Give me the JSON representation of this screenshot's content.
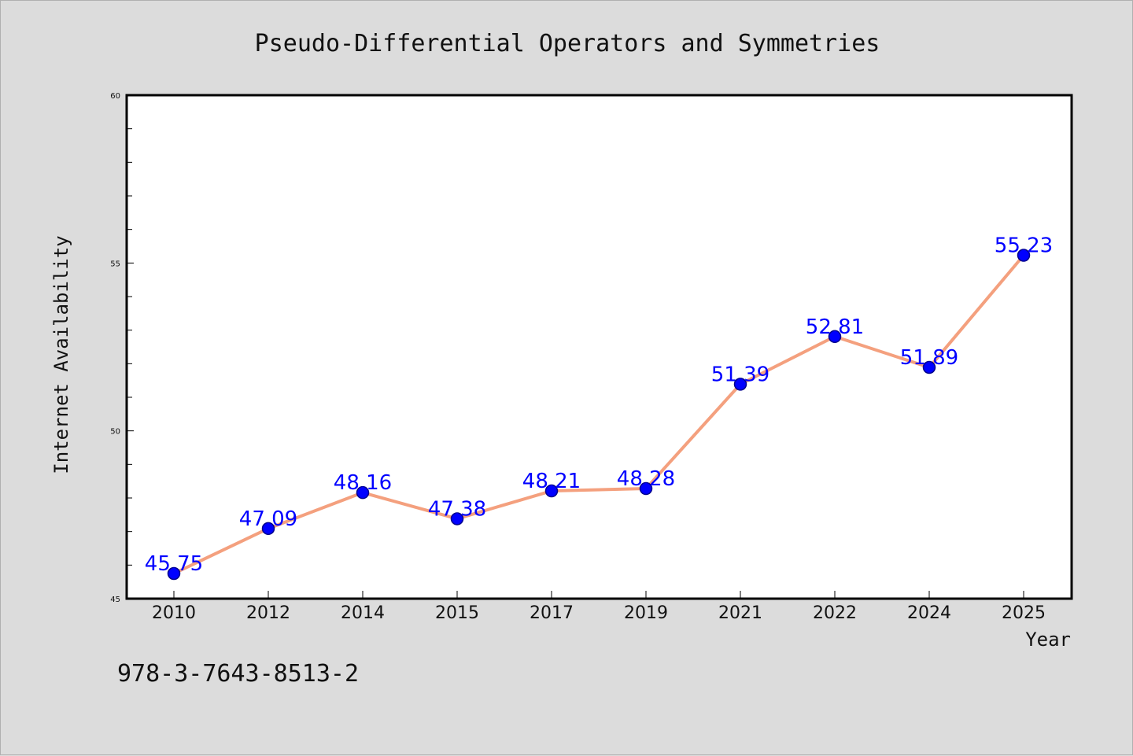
{
  "chart_data": {
    "type": "line",
    "title": "Pseudo-Differential Operators and Symmetries",
    "xlabel": "Year",
    "ylabel": "Internet Availability",
    "categories": [
      "2010",
      "2012",
      "2014",
      "2015",
      "2017",
      "2019",
      "2021",
      "2022",
      "2024",
      "2025"
    ],
    "series": [
      {
        "values": [
          45.75,
          47.09,
          48.16,
          47.38,
          48.21,
          48.28,
          51.39,
          52.81,
          51.89,
          55.23
        ],
        "labels": [
          "45.75",
          "47.09",
          "48.16",
          "47.38",
          "48.21",
          "48.28",
          "51.39",
          "52.81",
          "51.89",
          "55.23"
        ]
      }
    ],
    "ylim": [
      45,
      60
    ],
    "yticks": [
      "45",
      "50",
      "55",
      "60"
    ],
    "y_minor_step": 1,
    "grid": false,
    "legend": "none",
    "colors": {
      "line": "#f4a07e",
      "marker": "#0000ff",
      "marker_edge": "#00008b",
      "data_label": "#0000ff",
      "plot_background": "#ffffff",
      "page_background": "#dcdcdc"
    }
  },
  "annotation": {
    "isbn": "978-3-7643-8513-2"
  }
}
